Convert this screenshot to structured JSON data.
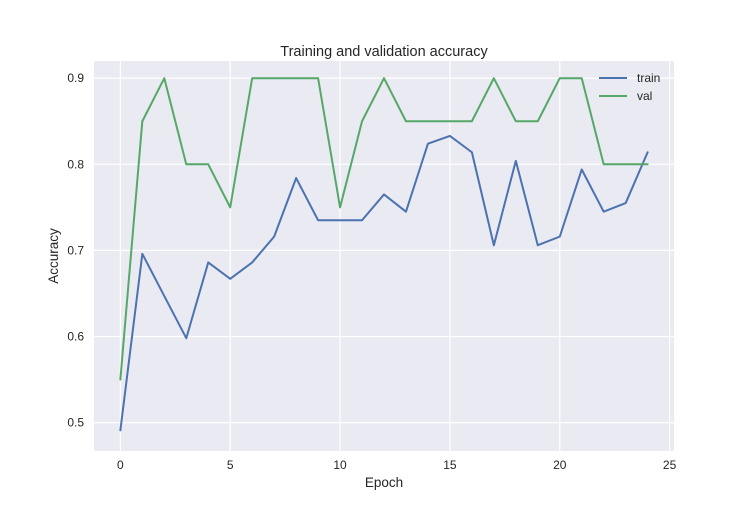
{
  "chart_data": {
    "type": "line",
    "title": "Training and validation accuracy",
    "xlabel": "Epoch",
    "ylabel": "Accuracy",
    "xlim": [
      -1.2,
      25.2
    ],
    "ylim": [
      0.467,
      0.92
    ],
    "xticks": [
      0,
      5,
      10,
      15,
      20,
      25
    ],
    "yticks": [
      0.5,
      0.6,
      0.7,
      0.8,
      0.9
    ],
    "grid": true,
    "legend_position": "top-right",
    "x": [
      0,
      1,
      2,
      3,
      4,
      5,
      6,
      7,
      8,
      9,
      10,
      11,
      12,
      13,
      14,
      15,
      16,
      17,
      18,
      19,
      20,
      21,
      22,
      23,
      24
    ],
    "series": [
      {
        "name": "train",
        "color": "#4c72b0",
        "values": [
          0.491,
          0.696,
          0.647,
          0.598,
          0.686,
          0.667,
          0.686,
          0.716,
          0.784,
          0.735,
          0.735,
          0.735,
          0.765,
          0.745,
          0.824,
          0.833,
          0.814,
          0.706,
          0.804,
          0.706,
          0.716,
          0.794,
          0.745,
          0.755,
          0.814
        ]
      },
      {
        "name": "val",
        "color": "#55a868",
        "values": [
          0.55,
          0.85,
          0.9,
          0.8,
          0.8,
          0.75,
          0.9,
          0.9,
          0.9,
          0.9,
          0.75,
          0.85,
          0.9,
          0.85,
          0.85,
          0.85,
          0.85,
          0.9,
          0.85,
          0.85,
          0.9,
          0.9,
          0.8,
          0.8,
          0.8
        ]
      }
    ]
  }
}
